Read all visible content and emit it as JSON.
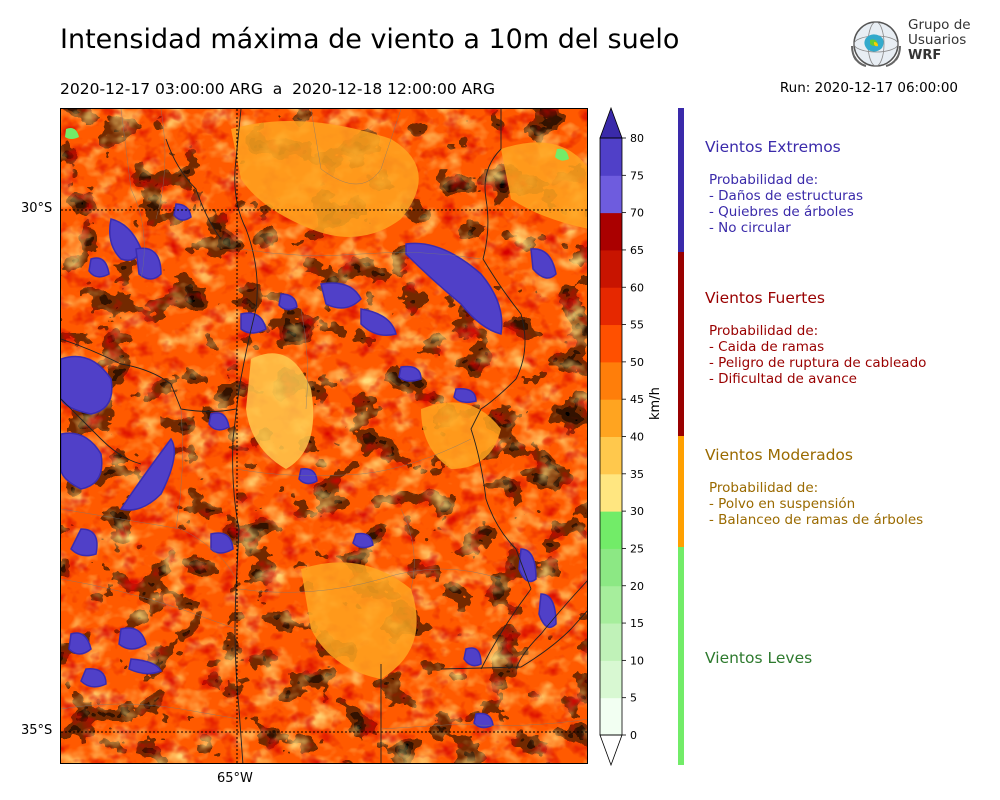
{
  "header": {
    "title": "Intensidad máxima de viento a 10m del suelo",
    "period": "2020-12-17 03:00:00 ARG  a  2020-12-18 12:00:00 ARG",
    "run": "Run: 2020-12-17 06:00:00"
  },
  "logo": {
    "line1": "Grupo de",
    "line2": "Usuarios",
    "line3": "WRF"
  },
  "map": {
    "lat_labels": [
      "30°S",
      "35°S"
    ],
    "lon_labels": [
      "65°W"
    ]
  },
  "colorbar": {
    "units": "km/h",
    "ticks": [
      "0",
      "5",
      "10",
      "15",
      "20",
      "25",
      "30",
      "35",
      "40",
      "45",
      "50",
      "55",
      "60",
      "65",
      "70",
      "75",
      "80"
    ],
    "colors": [
      "#f2fff2",
      "#d8f8d2",
      "#c0f2b8",
      "#a6ee9c",
      "#8ce884",
      "#72ec68",
      "#ffe680",
      "#ffc84c",
      "#ffa420",
      "#ff7e0a",
      "#ff5000",
      "#e62800",
      "#c81400",
      "#aa0000",
      "#6e5cde",
      "#5040c8",
      "#3a2cb0"
    ],
    "extend_top_color": "#3a2aaa",
    "extend_bottom_color": "#ffffff"
  },
  "categories": [
    {
      "title": "Vientos Extremos",
      "color": "#3a2aaa",
      "lines": [
        "Probabilidad de:",
        "- Daños de estructuras",
        "- Quiebres de árboles",
        "- No circular"
      ]
    },
    {
      "title": "Vientos Fuertes",
      "color": "#990000",
      "lines": [
        "Probabilidad de:",
        "- Caida de ramas",
        "- Peligro de ruptura de cableado",
        "- Dificultad de avance"
      ]
    },
    {
      "title": "Vientos Moderados",
      "color": "#9a6a00",
      "lines": [
        "Probabilidad de:",
        "- Polvo en suspensión",
        "- Balanceo de ramas de árboles"
      ]
    },
    {
      "title": "Vientos Leves",
      "color": "#2e7a2e",
      "lines": []
    }
  ],
  "category_bar_colors": [
    "#3a2aaa",
    "#990000",
    "#ffa000",
    "#72ec68"
  ]
}
